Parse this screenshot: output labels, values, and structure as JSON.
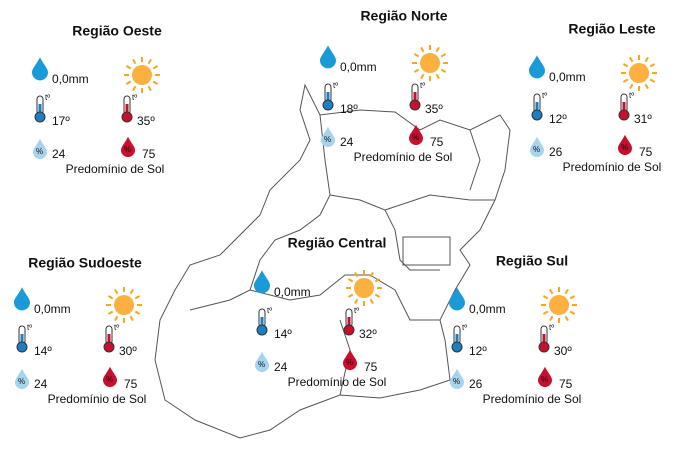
{
  "symbols": {
    "temperature": "tº",
    "humidity": "%"
  },
  "regions": [
    {
      "name": "Região Oeste",
      "rain": "0,0mm",
      "temp_min": "17º",
      "temp_max": "35º",
      "humidity_min": "24",
      "humidity_max": "75",
      "condition": "Predomínio de Sol"
    },
    {
      "name": "Região Norte",
      "rain": "0,0mm",
      "temp_min": "18º",
      "temp_max": "35º",
      "humidity_min": "24",
      "humidity_max": "75",
      "condition": "Predomínio de Sol"
    },
    {
      "name": "Região Leste",
      "rain": "0,0mm",
      "temp_min": "12º",
      "temp_max": "31º",
      "humidity_min": "26",
      "humidity_max": "75",
      "condition": "Predomínio de Sol"
    },
    {
      "name": "Região Central",
      "rain": "0,0mm",
      "temp_min": "14º",
      "temp_max": "32º",
      "humidity_min": "24",
      "humidity_max": "75",
      "condition": "Predomínio de Sol"
    },
    {
      "name": "Região Sudoeste",
      "rain": "0,0mm",
      "temp_min": "14º",
      "temp_max": "30º",
      "humidity_min": "24",
      "humidity_max": "75",
      "condition": "Predomínio de Sol"
    },
    {
      "name": "Região Sul",
      "rain": "0,0mm",
      "temp_min": "12º",
      "temp_max": "30º",
      "humidity_min": "26",
      "humidity_max": "75",
      "condition": "Predomínio de Sol"
    }
  ]
}
